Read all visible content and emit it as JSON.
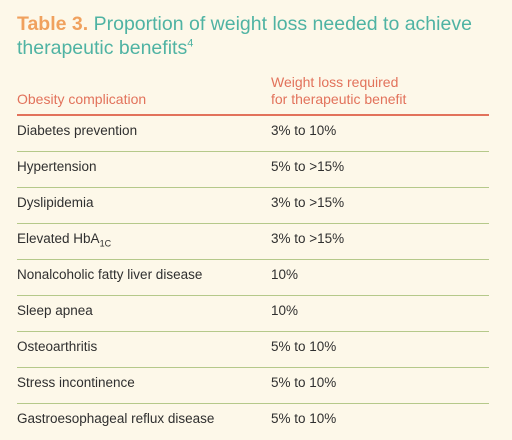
{
  "title": {
    "number": "Table 3.",
    "text": "Proportion of weight loss needed to achieve therapeutic benefits",
    "ref": "4"
  },
  "header": {
    "col1": "Obesity complication",
    "col2_line1": "Weight loss required",
    "col2_line2": "for therapeutic benefit"
  },
  "rows": [
    {
      "complication": "Diabetes prevention",
      "weight_loss": "3% to 10%"
    },
    {
      "complication": "Hypertension",
      "weight_loss": "5% to >15%"
    },
    {
      "complication": "Dyslipidemia",
      "weight_loss": "3% to >15%"
    },
    {
      "complication": "Elevated HbA",
      "complication_sub": "1C",
      "weight_loss": "3% to >15%"
    },
    {
      "complication": "Nonalcoholic fatty liver disease",
      "weight_loss": "10%"
    },
    {
      "complication": "Sleep apnea",
      "weight_loss": "10%"
    },
    {
      "complication": "Osteoarthritis",
      "weight_loss": "5% to 10%"
    },
    {
      "complication": "Stress incontinence",
      "weight_loss": "5% to 10%"
    },
    {
      "complication": "Gastroesophageal reflux disease",
      "weight_loss": "5% to 10%"
    }
  ],
  "colors": {
    "background": "#fdf8e9",
    "title_number": "#f0a15e",
    "title_text": "#4fb3a3",
    "header": "#e2725b",
    "row_divider": "#b5c98a"
  }
}
